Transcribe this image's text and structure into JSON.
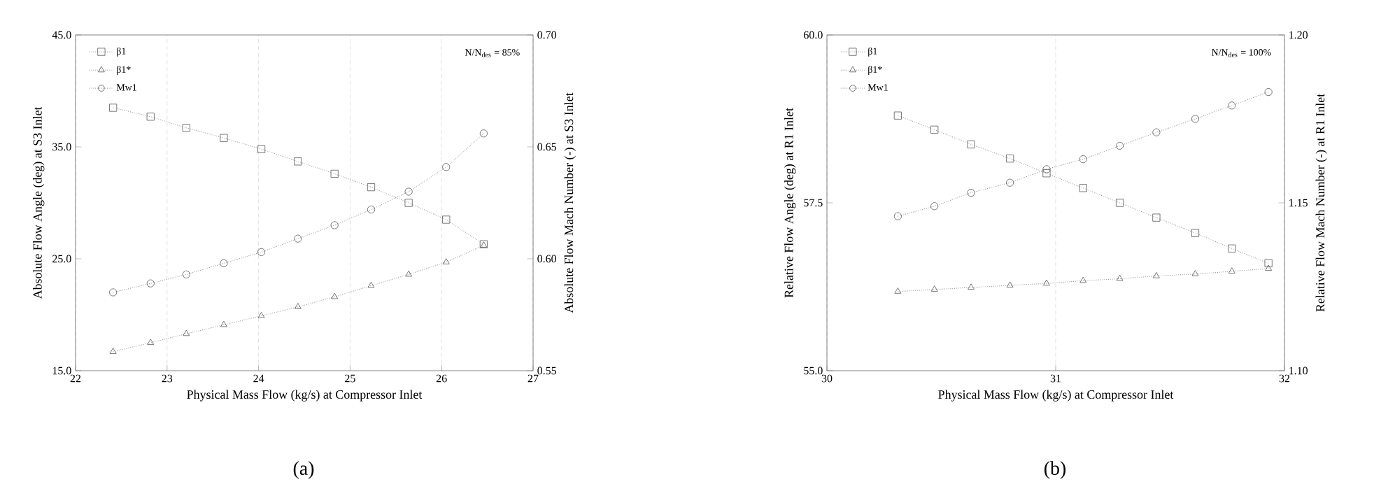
{
  "chart_data": [
    {
      "type": "line",
      "xlabel": "Physical Mass Flow (kg/s) at Compressor Inlet",
      "ylabel": "Absolute Flow Angle (deg) at S3 Inlet",
      "y2label": "Absolute Flow Mach Number (-) at S3 Inlet",
      "annotations": [
        "N/N$_{des}$ = 85%",
        "(a)"
      ],
      "x": [
        22.41,
        22.82,
        23.21,
        23.62,
        24.03,
        24.43,
        24.83,
        25.23,
        25.64,
        26.05,
        26.46
      ],
      "series": [
        {
          "name": "β1",
          "color": "#555555",
          "marker": "square",
          "values": [
            38.5,
            37.7,
            36.7,
            35.8,
            34.8,
            33.7,
            32.6,
            31.4,
            30.0,
            28.5,
            26.3
          ]
        },
        {
          "name": "β1*",
          "color": "#555555",
          "marker": "triangle",
          "values": [
            16.7,
            17.5,
            18.3,
            19.1,
            19.9,
            20.7,
            21.6,
            22.6,
            23.6,
            24.7,
            26.2
          ]
        },
        {
          "name": "Mw1",
          "color": "#555555",
          "marker": "circle",
          "axis": "y2",
          "values": [
            0.585,
            0.589,
            0.593,
            0.598,
            0.603,
            0.609,
            0.615,
            0.622,
            0.63,
            0.641,
            0.656
          ]
        }
      ],
      "xlim": [
        22,
        27
      ],
      "xticks": [
        22,
        23,
        24,
        25,
        26,
        27
      ],
      "ylim": [
        15,
        45
      ],
      "yticks": [
        {
          "value": 15,
          "label": "15.0"
        },
        {
          "value": 25,
          "label": "25.0"
        },
        {
          "value": 35,
          "label": "35.0"
        },
        {
          "value": 45,
          "label": "45.0"
        }
      ],
      "y2lim": [
        0.55,
        0.7
      ],
      "y2ticks": [
        0.55,
        {
          "value": 0.6,
          "label": "0.60"
        },
        0.65,
        {
          "value": 0.7,
          "label": "0.70"
        }
      ],
      "grid": "x",
      "legend": "top left",
      "line_style": "dotted"
    },
    {
      "type": "line",
      "xlabel": "Physical Mass Flow (kg/s) at Compressor Inlet",
      "ylabel": "Relative Flow Angle (deg) at R1 Inlet",
      "y2label": "Relative Flow Mach Number (-) at R1 Inlet",
      "annotations": [
        "N/N$_{des}$ = 100%",
        "(b)"
      ],
      "x": [
        30.31,
        30.47,
        30.63,
        30.8,
        30.96,
        31.12,
        31.28,
        31.44,
        31.61,
        31.77,
        31.93
      ],
      "series": [
        {
          "name": "β1",
          "color": "#555555",
          "marker": "square",
          "values": [
            58.8,
            58.59,
            58.37,
            58.16,
            57.94,
            57.72,
            57.5,
            57.28,
            57.05,
            56.82,
            56.6
          ]
        },
        {
          "name": "β1*",
          "color": "#555555",
          "marker": "triangle",
          "values": [
            56.18,
            56.21,
            56.24,
            56.27,
            56.3,
            56.34,
            56.37,
            56.41,
            56.44,
            56.48,
            56.52
          ]
        },
        {
          "name": "Mw1",
          "color": "#555555",
          "marker": "circle",
          "axis": "y2",
          "values": [
            1.146,
            1.149,
            1.153,
            1.156,
            1.16,
            1.163,
            1.167,
            1.171,
            1.175,
            1.179,
            1.183
          ]
        }
      ],
      "xlim": [
        30,
        32
      ],
      "xticks": [
        30,
        31,
        32
      ],
      "ylim": [
        55,
        60
      ],
      "yticks": [
        {
          "value": 55,
          "label": "55.0"
        },
        57.5,
        {
          "value": 60,
          "label": "60.0"
        }
      ],
      "y2lim": [
        1.1,
        1.2
      ],
      "y2ticks": [
        {
          "value": 1.1,
          "label": "1.10"
        },
        1.15,
        {
          "value": 1.2,
          "label": "1.20"
        }
      ],
      "grid": "x",
      "legend": "top left",
      "line_style": "dotted"
    }
  ]
}
